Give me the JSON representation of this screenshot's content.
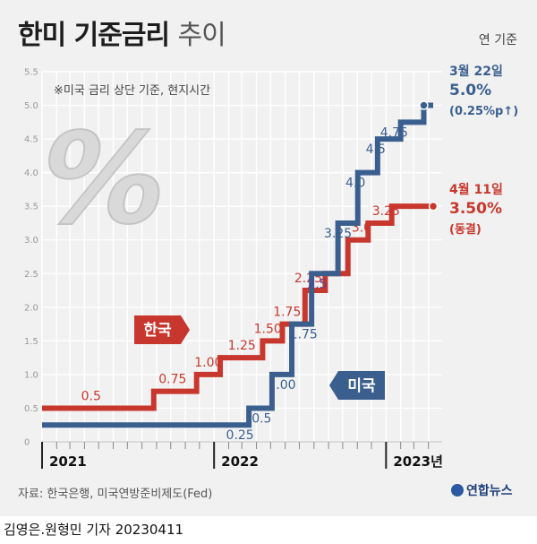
{
  "header": {
    "title_main": "한미 기준금리",
    "title_sub": "추이",
    "unit": "연 기준",
    "note": "※미국 금리 상단 기준, 현지시간"
  },
  "footer": {
    "source": "자료: 한국은행, 미국연방준비제도(Fed)",
    "brand": "연합뉴스",
    "byline": "김영은.원형민 기자  20230411"
  },
  "colors": {
    "korea": "#c8372d",
    "us": "#3a5f8f",
    "bg": "#f1f1f1"
  },
  "chart_data": {
    "type": "line",
    "ylim": [
      0,
      5.5
    ],
    "yticks": [
      "0",
      "0.5",
      "1.0",
      "1.5",
      "2.0",
      "2.5",
      "3.0",
      "3.5",
      "4.0",
      "4.5",
      "5.0",
      "5.5"
    ],
    "xlabels": [
      "2021",
      "2022",
      "2023년"
    ],
    "series": [
      {
        "name": "한국",
        "color": "#c8372d",
        "points": [
          [
            "2021-01-01",
            0.5
          ],
          [
            "2021-08-26",
            0.75
          ],
          [
            "2021-11-25",
            1.0
          ],
          [
            "2022-01-14",
            1.25
          ],
          [
            "2022-04-14",
            1.5
          ],
          [
            "2022-05-26",
            1.75
          ],
          [
            "2022-07-13",
            2.25
          ],
          [
            "2022-08-25",
            2.5
          ],
          [
            "2022-10-12",
            3.0
          ],
          [
            "2022-11-24",
            3.25
          ],
          [
            "2023-01-13",
            3.5
          ],
          [
            "2023-04-11",
            3.5
          ]
        ],
        "labels": [
          {
            "text": "0.5",
            "date": "2021-04-15",
            "value": 0.5
          },
          {
            "text": "0.75",
            "date": "2021-10-05",
            "value": 0.75
          },
          {
            "text": "1.00",
            "date": "2021-12-20",
            "value": 1.0
          },
          {
            "text": "1.25",
            "date": "2022-03-01",
            "value": 1.25
          },
          {
            "text": "1.50",
            "date": "2022-04-25",
            "value": 1.5
          },
          {
            "text": "1.75",
            "date": "2022-06-05",
            "value": 1.75
          },
          {
            "text": "2.25",
            "date": "2022-07-20",
            "value": 2.25
          },
          {
            "text": "3.0",
            "date": "2022-11-10",
            "value": 3.0
          },
          {
            "text": "3.25",
            "date": "2023-01-01",
            "value": 3.25
          }
        ],
        "tag": "한국",
        "end_label": {
          "date_text": "4월 11일",
          "value_text": "3.50%",
          "change_text": "(동결)"
        }
      },
      {
        "name": "미국",
        "color": "#3a5f8f",
        "points": [
          [
            "2021-01-01",
            0.25
          ],
          [
            "2022-03-16",
            0.5
          ],
          [
            "2022-05-04",
            1.0
          ],
          [
            "2022-06-15",
            1.75
          ],
          [
            "2022-07-27",
            2.5
          ],
          [
            "2022-09-21",
            3.25
          ],
          [
            "2022-11-02",
            4.0
          ],
          [
            "2022-12-14",
            4.5
          ],
          [
            "2023-02-01",
            4.75
          ],
          [
            "2023-03-22",
            5.0
          ],
          [
            "2023-04-11",
            5.0
          ]
        ],
        "labels": [
          {
            "text": "0.25",
            "date": "2022-02-25",
            "value": 0.25
          },
          {
            "text": "0.5",
            "date": "2022-04-12",
            "value": 0.5
          },
          {
            "text": "1.00",
            "date": "2022-05-25",
            "value": 1.0
          },
          {
            "text": "1.75",
            "date": "2022-07-10",
            "value": 1.75
          },
          {
            "text": "2.5",
            "date": "2022-08-08",
            "value": 2.5
          },
          {
            "text": "3.25",
            "date": "2022-09-21",
            "value": 3.25
          },
          {
            "text": "4.0",
            "date": "2022-10-28",
            "value": 4.0
          },
          {
            "text": "4.5",
            "date": "2022-12-10",
            "value": 4.5
          },
          {
            "text": "4.75",
            "date": "2023-01-18",
            "value": 4.75
          }
        ],
        "tag": "미국",
        "end_label": {
          "date_text": "3월 22일",
          "value_text": "5.0%",
          "change_text": "(0.25%p↑)"
        }
      }
    ]
  }
}
